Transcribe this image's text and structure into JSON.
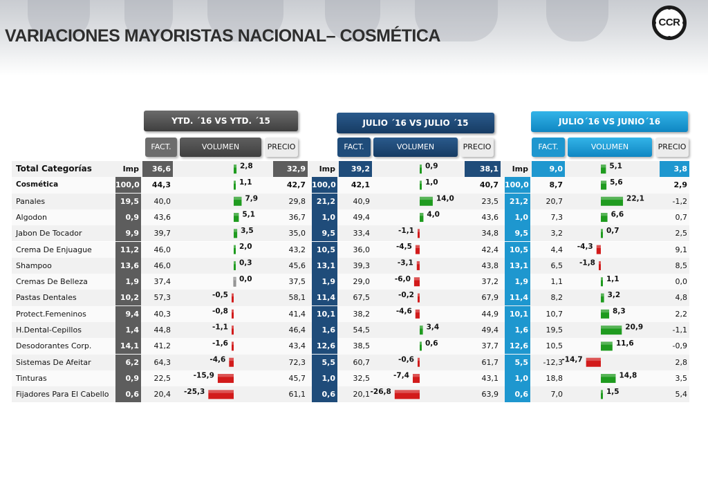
{
  "title": "VARIACIONES MAYORISTAS NACIONAL– COSMÉTICA",
  "logo_text": "CCR",
  "headers": {
    "ytd": "YTD. ´16 VS YTD. ´15",
    "jul": "JULIO ´16 VS  JULIO ´15",
    "jun": "JULIO´16 VS JUNIO´16"
  },
  "subheaders": {
    "fact": "FACT.",
    "volumen": "VOLUMEN",
    "precio": "PRECIO"
  },
  "imp_label": "Imp",
  "colors": {
    "positive": "#1f9b1f",
    "negative": "#d21b1b",
    "neutral": "#9a9a9a"
  },
  "chart_data": {
    "type": "table",
    "categories": [
      "Total  Categorías",
      "Cosmética",
      "Panales",
      "Algodon",
      "Jabon De Tocador",
      "Crema De Enjuague",
      "Shampoo",
      "Cremas De Belleza",
      "Pastas Dentales",
      "Protect.Femeninos",
      "H.Dental-Cepillos",
      "Desodorantes Corp.",
      "Sistemas De Afeitar",
      "Tinturas",
      "Fijadores Para El Cabello"
    ],
    "series": [
      {
        "name": "YTD. ´16 VS YTD. ´15",
        "imp": [
          "",
          "100,0",
          "19,5",
          "0,9",
          "9,9",
          "11,2",
          "13,6",
          "1,9",
          "10,2",
          "9,4",
          "1,4",
          "14,1",
          "6,2",
          "0,9",
          "0,6"
        ],
        "fact": [
          "36,6",
          "44,3",
          "40,0",
          "43,6",
          "39,7",
          "46,0",
          "46,0",
          "37,4",
          "57,3",
          "40,3",
          "44,8",
          "41,2",
          "64,3",
          "22,5",
          "20,4"
        ],
        "volumen": [
          2.8,
          1.1,
          7.9,
          5.1,
          3.5,
          2.0,
          0.3,
          0.0,
          -0.5,
          -0.8,
          -1.1,
          -1.6,
          -4.6,
          -15.9,
          -25.3
        ],
        "volumen_labels": [
          "2,8",
          "1,1",
          "7,9",
          "5,1",
          "3,5",
          "2,0",
          "0,3",
          "0,0",
          "-0,5",
          "-0,8",
          "-1,1",
          "-1,6",
          "-4,6",
          "-15,9",
          "-25,3"
        ],
        "precio": [
          "32,9",
          "42,7",
          "29,8",
          "36,7",
          "35,0",
          "43,2",
          "45,6",
          "37,5",
          "58,1",
          "41,4",
          "46,4",
          "43,4",
          "72,3",
          "45,7",
          "61,1"
        ]
      },
      {
        "name": "JULIO ´16 VS  JULIO ´15",
        "imp": [
          "",
          "100,0",
          "21,2",
          "1,0",
          "9,5",
          "10,5",
          "13,1",
          "1,9",
          "11,4",
          "10,1",
          "1,6",
          "12,6",
          "5,5",
          "1,0",
          "0,6"
        ],
        "fact": [
          "39,2",
          "42,1",
          "40,9",
          "49,4",
          "33,4",
          "36,0",
          "39,3",
          "29,0",
          "67,5",
          "38,2",
          "54,5",
          "38,5",
          "60,7",
          "32,5",
          "20,1"
        ],
        "volumen": [
          0.9,
          1.0,
          14.0,
          4.0,
          -1.1,
          -4.5,
          -3.1,
          -6.0,
          -0.2,
          -4.6,
          3.4,
          0.6,
          -0.6,
          -7.4,
          -26.8
        ],
        "volumen_labels": [
          "0,9",
          "1,0",
          "14,0",
          "4,0",
          "-1,1",
          "-4,5",
          "-3,1",
          "-6,0",
          "-0,2",
          "-4,6",
          "3,4",
          "0,6",
          "-0,6",
          "-7,4",
          "-26,8"
        ],
        "precio": [
          "38,1",
          "40,7",
          "23,5",
          "43,6",
          "34,8",
          "42,4",
          "43,8",
          "37,2",
          "67,9",
          "44,9",
          "49,4",
          "37,7",
          "61,7",
          "43,1",
          "63,9"
        ]
      },
      {
        "name": "JULIO´16 VS JUNIO´16",
        "imp": [
          "",
          "100,0",
          "21,2",
          "1,0",
          "9,5",
          "10,5",
          "13,1",
          "1,9",
          "11,4",
          "10,1",
          "1,6",
          "12,6",
          "5,5",
          "1,0",
          "0,6"
        ],
        "fact": [
          "9,0",
          "8,7",
          "20,7",
          "7,3",
          "3,2",
          "4,4",
          "6,5",
          "1,1",
          "8,2",
          "10,7",
          "19,5",
          "10,5",
          "-12,3",
          "18,8",
          "7,0"
        ],
        "volumen": [
          5.1,
          5.6,
          22.1,
          6.6,
          0.7,
          -4.3,
          -1.8,
          1.1,
          3.2,
          8.3,
          20.9,
          11.6,
          -14.7,
          14.8,
          1.5
        ],
        "volumen_labels": [
          "5,1",
          "5,6",
          "22,1",
          "6,6",
          "0,7",
          "-4,3",
          "-1,8",
          "1,1",
          "3,2",
          "8,3",
          "20,9",
          "11,6",
          "-14,7",
          "14,8",
          "1,5"
        ],
        "precio": [
          "3,8",
          "2,9",
          "-1,2",
          "0,7",
          "2,5",
          "9,1",
          "8,5",
          "0,0",
          "4,8",
          "2,2",
          "-1,1",
          "-0,9",
          "2,8",
          "3,5",
          "5,4"
        ]
      }
    ]
  }
}
